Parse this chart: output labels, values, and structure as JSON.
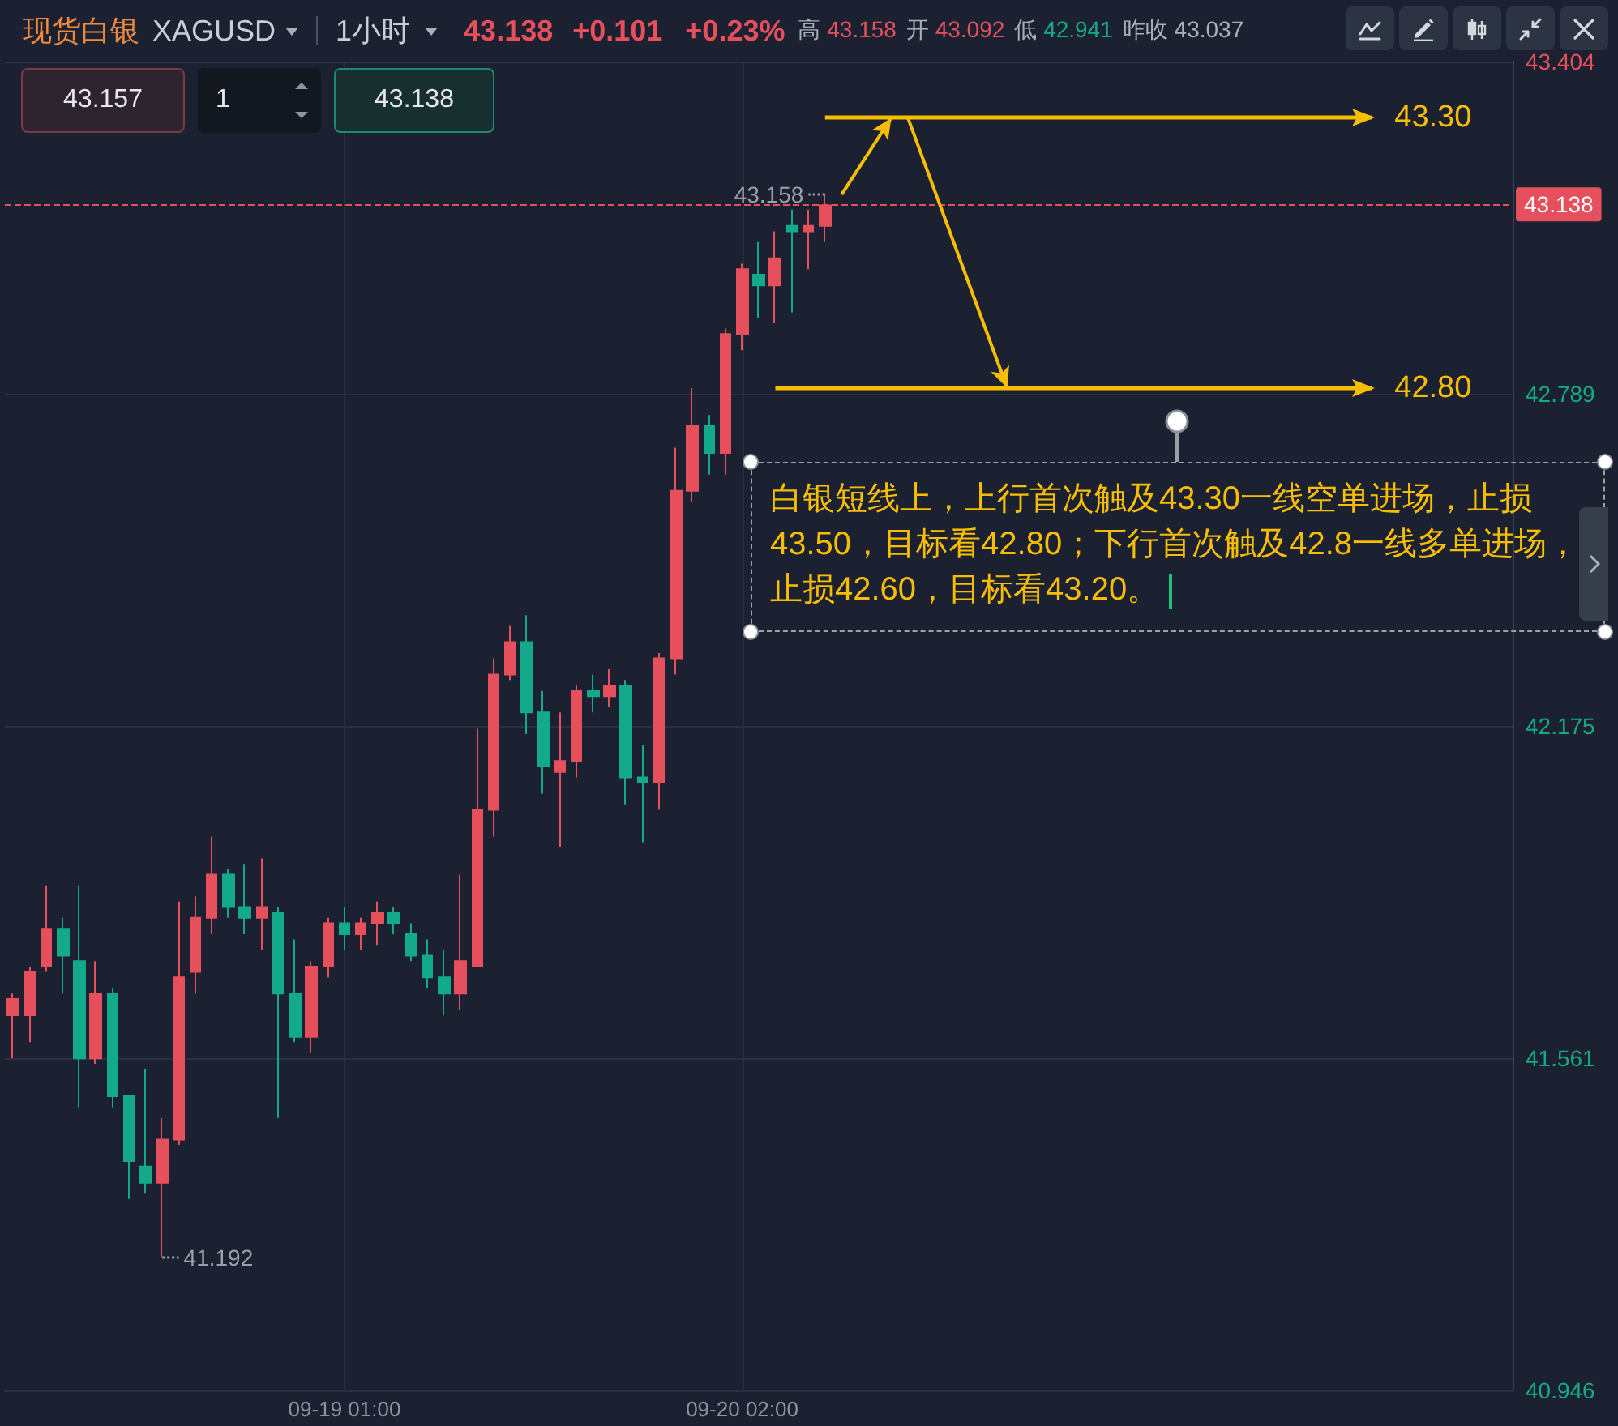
{
  "chart_data": {
    "type": "candlestick",
    "title": "现货白银",
    "subtitle": "XAGUSD",
    "categories": [
      null,
      null,
      null,
      null,
      null,
      null,
      null,
      null,
      null,
      null,
      null,
      null,
      null,
      null,
      null,
      null,
      null,
      null,
      null,
      null,
      "09-19 01:00",
      null,
      null,
      null,
      null,
      null,
      null,
      null,
      null,
      null,
      null,
      null,
      null,
      null,
      null,
      null,
      null,
      null,
      null,
      null,
      null,
      null,
      null,
      null,
      "09-20 02:00",
      null,
      null,
      null,
      null,
      null,
      null,
      null,
      null,
      null,
      null,
      null,
      null,
      null,
      null,
      null,
      null,
      null,
      null,
      null,
      null,
      null,
      null,
      null,
      null,
      null,
      null,
      null,
      null,
      null,
      null,
      null,
      null,
      null,
      null,
      null,
      null,
      null,
      null,
      null,
      null,
      null,
      null,
      null,
      null,
      null,
      null
    ],
    "ohlc": [
      [
        41.64,
        41.68,
        41.56,
        41.67
      ],
      [
        41.64,
        41.73,
        41.59,
        41.72
      ],
      [
        41.73,
        41.88,
        41.72,
        41.8
      ],
      [
        41.8,
        41.82,
        41.68,
        41.75
      ],
      [
        41.74,
        41.88,
        41.47,
        41.56
      ],
      [
        41.56,
        41.74,
        41.55,
        41.68
      ],
      [
        41.68,
        41.69,
        41.47,
        41.49
      ],
      [
        41.49,
        41.49,
        41.3,
        41.37
      ],
      [
        41.36,
        41.54,
        41.31,
        41.33
      ],
      [
        41.33,
        41.45,
        41.192,
        41.41
      ],
      [
        41.41,
        41.85,
        41.4,
        41.71
      ],
      [
        41.72,
        41.86,
        41.68,
        41.82
      ],
      [
        41.82,
        41.97,
        41.79,
        41.9
      ],
      [
        41.9,
        41.91,
        41.82,
        41.84
      ],
      [
        41.84,
        41.92,
        41.79,
        41.82
      ],
      [
        41.82,
        41.93,
        41.76,
        41.84
      ],
      [
        41.83,
        41.84,
        41.45,
        41.68
      ],
      [
        41.68,
        41.78,
        41.59,
        41.6
      ],
      [
        41.6,
        41.74,
        41.57,
        41.73
      ],
      [
        41.73,
        41.82,
        41.71,
        41.81
      ],
      [
        41.81,
        41.84,
        41.76,
        41.79
      ],
      [
        41.79,
        41.82,
        41.76,
        41.81
      ],
      [
        41.81,
        41.85,
        41.77,
        41.83
      ],
      [
        41.83,
        41.84,
        41.79,
        41.81
      ],
      [
        41.79,
        41.81,
        41.74,
        41.75
      ],
      [
        41.75,
        41.78,
        41.69,
        41.71
      ],
      [
        41.71,
        41.76,
        41.64,
        41.68
      ],
      [
        41.68,
        41.9,
        41.65,
        41.74
      ],
      [
        41.73,
        42.17,
        41.73,
        42.02
      ],
      [
        42.02,
        42.3,
        41.97,
        42.27
      ],
      [
        42.27,
        42.36,
        42.26,
        42.33
      ],
      [
        42.33,
        42.38,
        42.16,
        42.2
      ],
      [
        42.2,
        42.24,
        42.05,
        42.1
      ],
      [
        42.09,
        42.2,
        41.95,
        42.11
      ],
      [
        42.11,
        42.25,
        42.08,
        42.24
      ],
      [
        42.24,
        42.27,
        42.2,
        42.23
      ],
      [
        42.23,
        42.28,
        42.21,
        42.25
      ],
      [
        42.25,
        42.26,
        42.03,
        42.08
      ],
      [
        42.08,
        42.14,
        41.96,
        42.07
      ],
      [
        42.07,
        42.31,
        42.02,
        42.3
      ],
      [
        42.3,
        42.69,
        42.27,
        42.61
      ],
      [
        42.61,
        42.8,
        42.59,
        42.73
      ],
      [
        42.73,
        42.75,
        42.64,
        42.68
      ],
      [
        42.68,
        42.91,
        42.64,
        42.9
      ],
      [
        42.9,
        43.03,
        42.87,
        43.02
      ],
      [
        43.01,
        43.07,
        42.93,
        42.99
      ],
      [
        42.99,
        43.09,
        42.92,
        43.04
      ],
      [
        43.1,
        43.13,
        42.94,
        43.09
      ],
      [
        43.09,
        43.13,
        43.02,
        43.1
      ],
      [
        43.1,
        43.158,
        43.07,
        43.138
      ],
      null,
      null,
      null,
      null,
      null,
      null,
      null,
      null,
      null,
      null,
      null,
      null,
      null,
      null,
      null,
      null,
      null,
      null,
      null,
      null,
      null,
      null,
      null,
      null,
      null,
      null,
      null,
      null,
      null,
      null,
      null,
      null,
      null,
      null,
      null,
      null,
      null,
      null,
      null,
      null,
      null
    ],
    "ylim": [
      40.946,
      43.404
    ],
    "yticks": [
      40.946,
      41.561,
      42.175,
      42.789,
      43.404
    ],
    "grid": true,
    "ref_lines": [
      {
        "axis": "y",
        "value": 43.138,
        "label": "43.138",
        "color": "#e5505c",
        "line_style": "dashed"
      },
      {
        "axis": "y",
        "value": 43.3,
        "label": "43.30",
        "color": "#f7bd00",
        "line_style": "solid"
      },
      {
        "axis": "y",
        "value": 42.8,
        "label": "42.80",
        "color": "#f7bd00",
        "line_style": "solid"
      }
    ],
    "annotations": [
      "1小时",
      "43.138",
      "+0.101",
      "+0.23%",
      "高 43.158",
      "开 43.092",
      "低 42.941",
      "昨收 43.037",
      "43.157",
      "1",
      "43.138",
      "白银短线上，上行首次触及43.30一线空单进场，止损43.50，目标看42.80；下行首次触及42.8一线多单进场，止损42.60，目标看43.20。",
      "43.158",
      "41.192"
    ]
  }
}
